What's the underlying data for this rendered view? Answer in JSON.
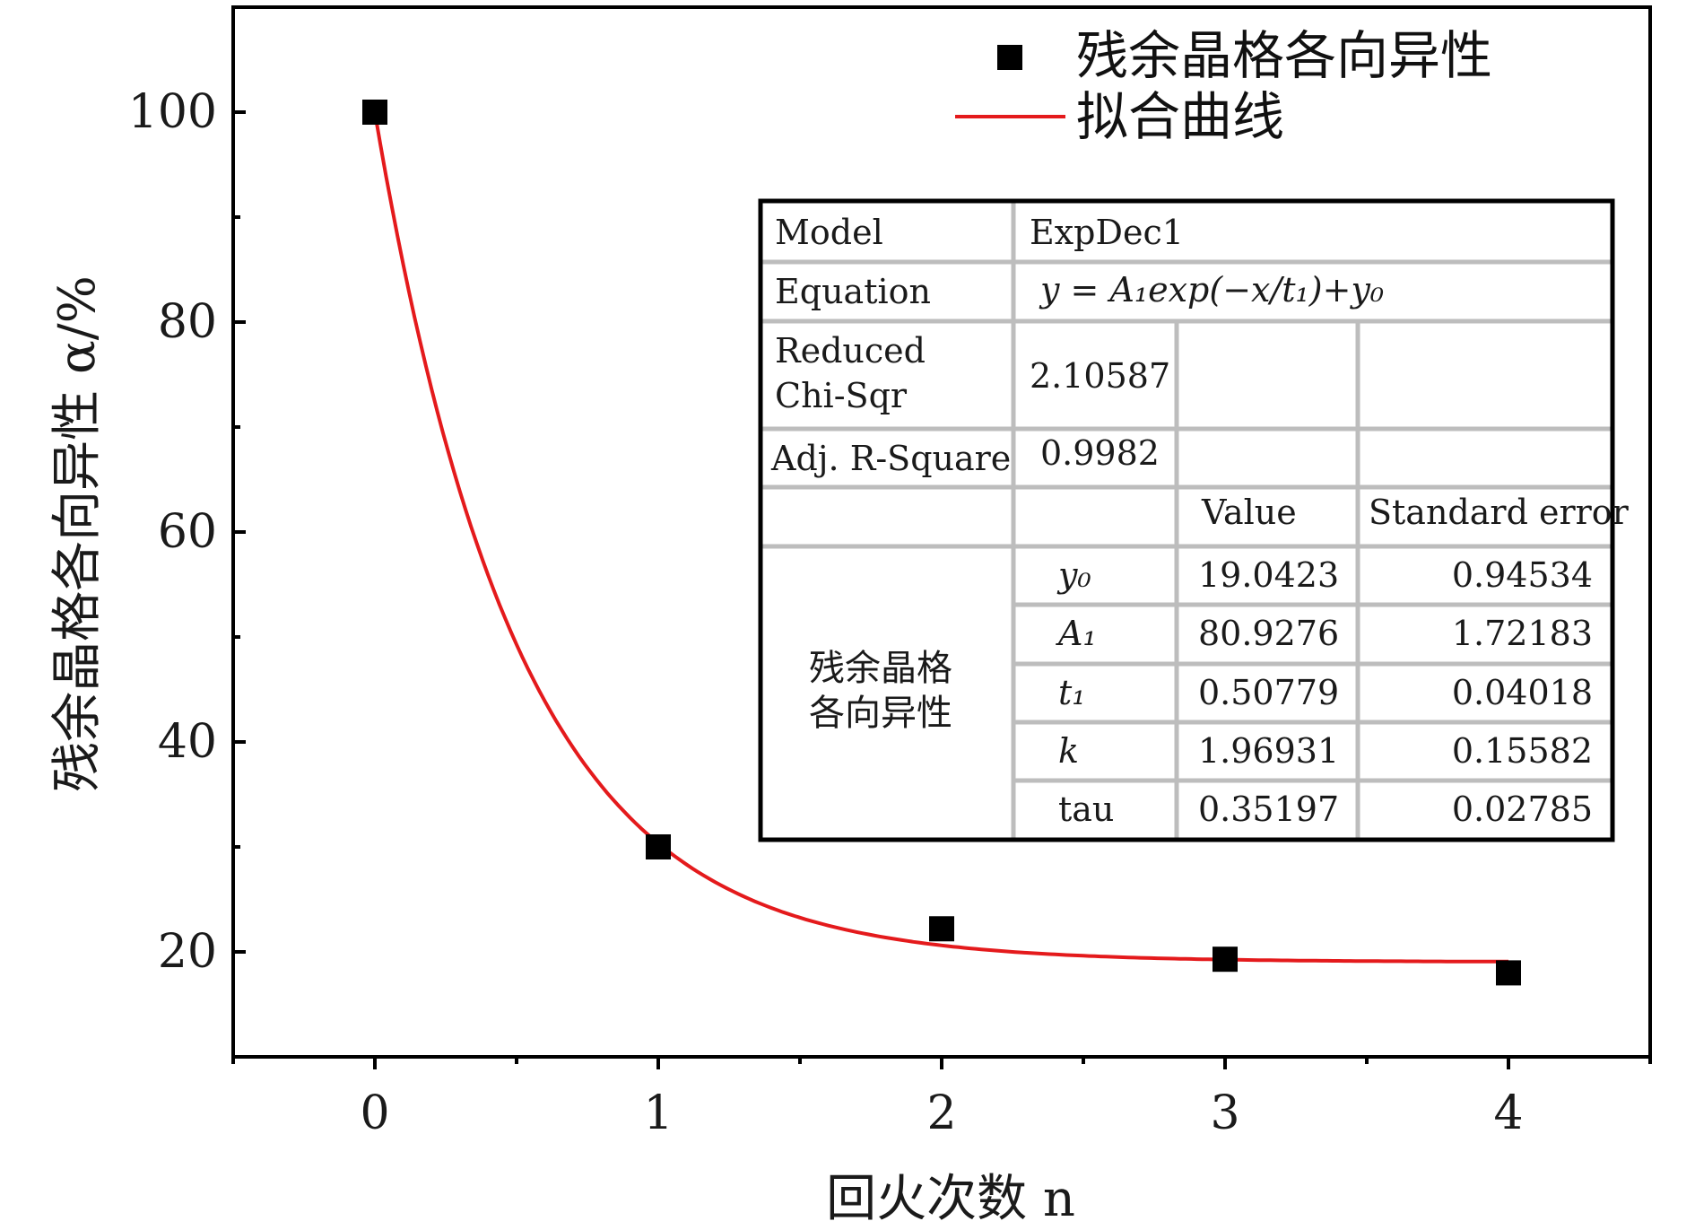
{
  "chart_data": {
    "type": "scatter",
    "xlabel": "回火次数 n",
    "ylabel": "残余晶格各向异性 α/%",
    "xlim": [
      -0.5,
      4.5
    ],
    "ylim": [
      10,
      110
    ],
    "x_ticks": [
      "0",
      "1",
      "2",
      "3",
      "4"
    ],
    "y_ticks": [
      "20",
      "40",
      "60",
      "80",
      "100"
    ],
    "series": [
      {
        "name": "残余晶格各向异性",
        "kind": "points",
        "color": "#000000",
        "x": [
          0,
          1,
          2,
          3,
          4
        ],
        "y": [
          100,
          30.0,
          22.2,
          19.3,
          18.0
        ]
      },
      {
        "name": "拟合曲线",
        "kind": "fit",
        "color": "#e41a1c",
        "model": "exp_decay",
        "y0": 19.0423,
        "A1": 80.9276,
        "t1": 0.50779,
        "x_range": [
          0,
          4
        ]
      }
    ],
    "legend_position": "top-right",
    "fit_table": {
      "model_label": "Model",
      "model_value": "ExpDec1",
      "equation_label": "Equation",
      "equation_value": "y = A₁exp(−x/t₁)+y₀",
      "chi_label_1": "Reduced",
      "chi_label_2": "Chi-Sqr",
      "chi_value": "2.10587",
      "r2_label": "Adj. R-Square",
      "r2_value": "0.9982",
      "value_header": "Value",
      "error_header": "Standard error",
      "group_label_1": "残余晶格",
      "group_label_2": "各向异性",
      "params": [
        {
          "name": "y₀",
          "value": "19.0423",
          "error": "0.94534"
        },
        {
          "name": "A₁",
          "value": "80.9276",
          "error": "1.72183"
        },
        {
          "name": "t₁",
          "value": "0.50779",
          "error": "0.04018"
        },
        {
          "name": "k",
          "value": "1.96931",
          "error": "0.15582"
        },
        {
          "name": "tau",
          "value": "0.35197",
          "error": "0.02785"
        }
      ]
    }
  }
}
